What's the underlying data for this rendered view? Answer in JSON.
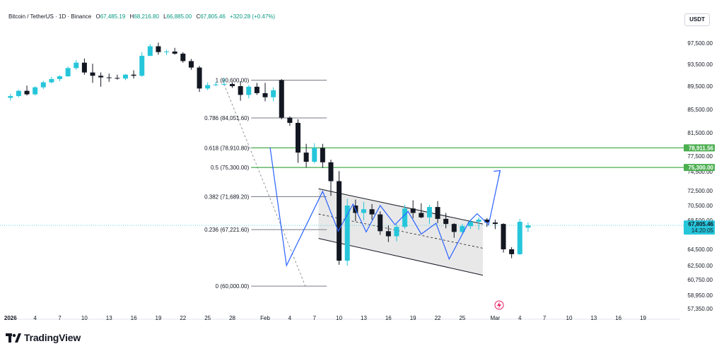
{
  "header": {
    "symbol": "Bitcoin / TetherUS · 1D · Binance",
    "open_label": "O",
    "open": "67,485.19",
    "high_label": "H",
    "high": "68,216.80",
    "low_label": "L",
    "low": "66,885.00",
    "close_label": "C",
    "close": "67,805.46",
    "change": "+320.28 (+0.47%)"
  },
  "currency": "USDT",
  "brand": "TradingView",
  "colors": {
    "up": "#26c6da",
    "down": "#131722",
    "fib_line": "#787b86",
    "green_level": "#4caf50",
    "projection": "#2962ff",
    "channel_fill": "#e0e0e0",
    "price_tag": "#26c6da"
  },
  "chart_data": {
    "type": "candlestick",
    "y_ticks": [
      "97,500.00",
      "93,500.00",
      "89,500.00",
      "85,500.00",
      "81,500.00",
      "77,500.00",
      "74,500.00",
      "72,500.00",
      "70,500.00",
      "68,500.00",
      "64,500.00",
      "62,500.00",
      "60,750.00",
      "58,950.00",
      "57,350.00"
    ],
    "ylim": [
      56000,
      100500
    ],
    "x_ticks": [
      {
        "label": "2026",
        "day": 0
      },
      {
        "label": "4",
        "day": 3
      },
      {
        "label": "7",
        "day": 6
      },
      {
        "label": "10",
        "day": 9
      },
      {
        "label": "13",
        "day": 12
      },
      {
        "label": "16",
        "day": 15
      },
      {
        "label": "19",
        "day": 18
      },
      {
        "label": "22",
        "day": 21
      },
      {
        "label": "25",
        "day": 24
      },
      {
        "label": "28",
        "day": 27
      },
      {
        "label": "Feb",
        "day": 31
      },
      {
        "label": "4",
        "day": 34
      },
      {
        "label": "7",
        "day": 37
      },
      {
        "label": "10",
        "day": 40
      },
      {
        "label": "13",
        "day": 43
      },
      {
        "label": "16",
        "day": 46
      },
      {
        "label": "19",
        "day": 49
      },
      {
        "label": "22",
        "day": 52
      },
      {
        "label": "25",
        "day": 55
      },
      {
        "label": "Mar",
        "day": 59
      },
      {
        "label": "4",
        "day": 62
      },
      {
        "label": "7",
        "day": 65
      },
      {
        "label": "10",
        "day": 68
      },
      {
        "label": "13",
        "day": 71
      },
      {
        "label": "16",
        "day": 74
      },
      {
        "label": "19",
        "day": 77
      }
    ],
    "candles": [
      [
        87500,
        88200,
        87000,
        87800
      ],
      [
        87800,
        88900,
        87600,
        88700
      ],
      [
        88700,
        89600,
        87900,
        88100
      ],
      [
        88100,
        89500,
        87900,
        89300
      ],
      [
        89300,
        90500,
        89000,
        90200
      ],
      [
        90200,
        91200,
        90000,
        90800
      ],
      [
        90800,
        91500,
        90400,
        91300
      ],
      [
        91300,
        93100,
        91200,
        92800
      ],
      [
        92800,
        94300,
        92500,
        93800
      ],
      [
        93800,
        94600,
        91600,
        92000
      ],
      [
        92000,
        93600,
        90100,
        91400
      ],
      [
        91400,
        92000,
        89400,
        91100
      ],
      [
        91100,
        91800,
        90300,
        91000
      ],
      [
        91000,
        91600,
        90700,
        90900
      ],
      [
        90900,
        91700,
        90600,
        91600
      ],
      [
        91600,
        92400,
        90900,
        91400
      ],
      [
        91400,
        95800,
        91200,
        95100
      ],
      [
        95100,
        97300,
        95000,
        96900
      ],
      [
        96900,
        97600,
        95300,
        95800
      ],
      [
        95800,
        96200,
        95200,
        95900
      ],
      [
        95900,
        96600,
        95300,
        95500
      ],
      [
        95500,
        95800,
        93800,
        94100
      ],
      [
        94100,
        94500,
        92500,
        92900
      ],
      [
        92900,
        93200,
        88500,
        89100
      ],
      [
        89100,
        90200,
        88800,
        89700
      ],
      [
        89700,
        90300,
        89500,
        89800
      ],
      [
        89800,
        91000,
        89600,
        89900
      ],
      [
        89900,
        90200,
        89200,
        89500
      ],
      [
        89500,
        90400,
        87000,
        88000
      ],
      [
        88000,
        89700,
        87400,
        89400
      ],
      [
        89400,
        90100,
        88000,
        88300
      ],
      [
        88300,
        90100,
        86900,
        87600
      ],
      [
        87600,
        89300,
        86900,
        88800
      ],
      [
        90600,
        90800,
        83800,
        84100
      ],
      [
        84100,
        84300,
        82700,
        83200
      ],
      [
        83200,
        83800,
        76200,
        78100
      ],
      [
        78100,
        79600,
        75300,
        76400
      ],
      [
        76400,
        79700,
        76100,
        78900
      ],
      [
        78900,
        79600,
        75200,
        76300
      ],
      [
        76300,
        76800,
        71800,
        73500
      ],
      [
        73500,
        74600,
        62600,
        63100
      ],
      [
        63100,
        71400,
        62500,
        70500
      ],
      [
        70500,
        71300,
        68400,
        69500
      ],
      [
        69500,
        71000,
        68500,
        70000
      ],
      [
        70000,
        70700,
        68600,
        69300
      ],
      [
        69300,
        69700,
        66500,
        67000
      ],
      [
        67000,
        67800,
        65500,
        66300
      ],
      [
        66300,
        68000,
        65600,
        67600
      ],
      [
        67600,
        70600,
        67300,
        70100
      ],
      [
        70100,
        71200,
        68800,
        69500
      ],
      [
        69500,
        70800,
        68800,
        68900
      ],
      [
        68900,
        70600,
        68000,
        70300
      ],
      [
        70300,
        71100,
        68100,
        68700
      ],
      [
        68700,
        69500,
        67400,
        68000
      ],
      [
        68000,
        68100,
        66100,
        66900
      ],
      [
        66900,
        68000,
        66500,
        67700
      ],
      [
        67700,
        68600,
        67300,
        68300
      ],
      [
        68300,
        68900,
        67200,
        68600
      ],
      [
        68600,
        68800,
        67600,
        68200
      ],
      [
        68200,
        68600,
        67300,
        68000
      ],
      [
        68000,
        68100,
        64100,
        64500
      ],
      [
        64500,
        64800,
        63400,
        63900
      ],
      [
        63900,
        68700,
        63800,
        68300
      ],
      [
        67485,
        68217,
        66885,
        67805
      ]
    ],
    "candle_spacing_days": 1,
    "fib_levels": [
      {
        "label": "1 (90,600.00)",
        "price": 90600
      },
      {
        "label": "0.786 (84,051.60)",
        "price": 84051.6
      },
      {
        "label": "0.618 (78,910.80)",
        "price": 78910.8
      },
      {
        "label": "0.5 (75,300.00)",
        "price": 75300
      },
      {
        "label": "0.382 (71,689.20)",
        "price": 71689.2
      },
      {
        "label": "0.236 (67,221.60)",
        "price": 67221.6
      },
      {
        "label": "0 (60,000.00)",
        "price": 60000
      }
    ],
    "green_levels": [
      {
        "label": "78,911.56",
        "price": 78911.56
      },
      {
        "label": "75,300.00",
        "price": 75300
      }
    ],
    "last_price_tag": {
      "price_label": "67,805.46",
      "timer": "14:20:05",
      "price": 67805.46
    },
    "channel": {
      "upper": [
        [
          37.5,
          72700
        ],
        [
          57.5,
          68000
        ]
      ],
      "lower": [
        [
          37.5,
          66000
        ],
        [
          57.5,
          61300
        ]
      ],
      "mid": [
        [
          37.5,
          69350
        ],
        [
          57.5,
          64650
        ]
      ]
    },
    "projection_path": [
      [
        31.6,
        79000
      ],
      [
        33.6,
        62500
      ],
      [
        38.0,
        72400
      ],
      [
        39.9,
        67000
      ],
      [
        41.7,
        70700
      ],
      [
        43.3,
        66900
      ],
      [
        45.0,
        70500
      ],
      [
        46.8,
        67900
      ],
      [
        48.4,
        69700
      ],
      [
        50.0,
        66600
      ],
      [
        51.8,
        68100
      ],
      [
        53.4,
        63300
      ],
      [
        55.8,
        68300
      ],
      [
        56.8,
        69400
      ],
      [
        58.2,
        67900
      ],
      [
        59.6,
        74700
      ]
    ],
    "fib_anchor": {
      "top": [
        25.8,
        90600
      ],
      "bottom": [
        35.9,
        60000
      ]
    }
  }
}
